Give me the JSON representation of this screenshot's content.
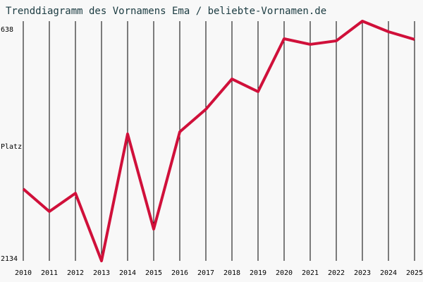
{
  "chart_data": {
    "type": "line",
    "title": "Trenddiagramm des Vornamens Ema / beliebte-Vornamen.de",
    "y_label": "Platz",
    "categories": [
      "2010",
      "2011",
      "2012",
      "2013",
      "2014",
      "2015",
      "2016",
      "2017",
      "2018",
      "2019",
      "2020",
      "2021",
      "2022",
      "2023",
      "2024",
      "2025"
    ],
    "values": [
      1685,
      1826,
      1712,
      2134,
      1342,
      1936,
      1329,
      1188,
      999,
      1078,
      748,
      783,
      761,
      638,
      704,
      752
    ],
    "color": "#d0103a",
    "ylim": [
      2134,
      638
    ],
    "yticks": [
      638,
      2134
    ],
    "grid": true
  }
}
